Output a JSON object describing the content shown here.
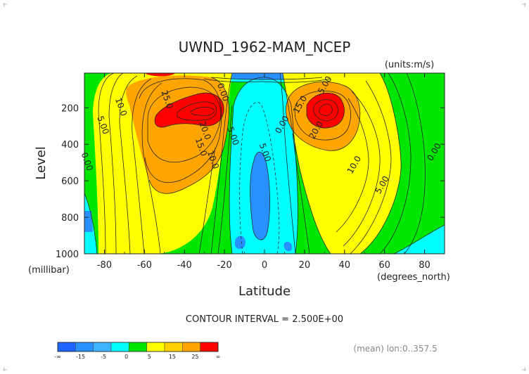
{
  "chart_data": {
    "type": "contour",
    "title": "UWND_1962-MAM_NCEP",
    "units_label": "(units:m/s)",
    "xlabel": "Latitude",
    "ylabel": "Level",
    "x_units_label": "(degrees_north)",
    "y_units_label": "(millibar)",
    "xlim": [
      -90,
      90
    ],
    "ylim": [
      1000,
      10
    ],
    "x_ticks": [
      -80,
      -60,
      -40,
      -20,
      0,
      20,
      40,
      60,
      80
    ],
    "y_ticks": [
      200,
      400,
      600,
      800,
      1000
    ],
    "contour_interval_label": "CONTOUR INTERVAL = 2.500E+00",
    "contour_labels": [
      {
        "text": "25.0",
        "lat": -50,
        "lev": 160
      },
      {
        "text": "20.0",
        "lat": -31,
        "lev": 330
      },
      {
        "text": "15.0",
        "lat": -33,
        "lev": 420
      },
      {
        "text": "10.0",
        "lat": -27,
        "lev": 490
      },
      {
        "text": "10.0",
        "lat": -73,
        "lev": 200
      },
      {
        "text": "5.00",
        "lat": -82,
        "lev": 300
      },
      {
        "text": "0.00",
        "lat": -90,
        "lev": 500
      },
      {
        "text": "5.00",
        "lat": -17,
        "lev": 360
      },
      {
        "text": "5.00",
        "lat": -1,
        "lev": 450
      },
      {
        "text": "0.00",
        "lat": 10,
        "lev": 300
      },
      {
        "text": "0.00",
        "lat": -22,
        "lev": 120
      },
      {
        "text": "-5.00",
        "lat": 31,
        "lev": 90
      },
      {
        "text": "15.0",
        "lat": 19,
        "lev": 190
      },
      {
        "text": "20.0",
        "lat": 27,
        "lev": 330
      },
      {
        "text": "10.0",
        "lat": 46,
        "lev": 520
      },
      {
        "text": "5.00",
        "lat": 60,
        "lev": 630
      },
      {
        "text": "0.00",
        "lat": 86,
        "lev": 450
      }
    ],
    "colorbar": {
      "colors": [
        "#1e64ff",
        "#2891ff",
        "#3cb4ff",
        "#00ffff",
        "#00e600",
        "#ffff00",
        "#ffd200",
        "#ffa500",
        "#ff0000"
      ],
      "labels": [
        "-∞",
        "-15",
        "-5",
        "0",
        "5",
        "15",
        "25",
        "∞"
      ]
    },
    "footnote": "(mean) lon:0..357.5"
  }
}
